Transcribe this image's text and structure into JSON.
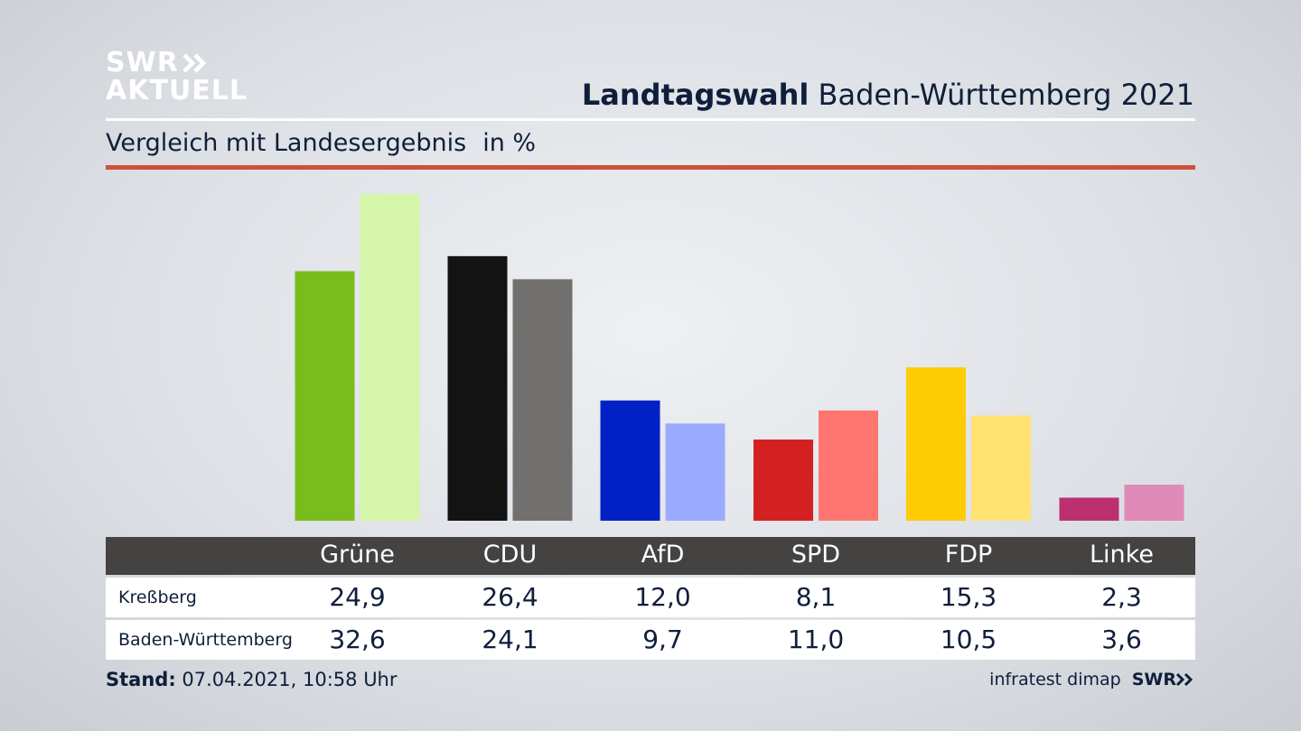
{
  "logo": {
    "line1": "SWR",
    "line2": "AKTUELL"
  },
  "header": {
    "title_bold": "Landtagswahl",
    "title_rest": "Baden-Württemberg 2021"
  },
  "subtitle": {
    "text": "Vergleich mit Landesergebnis",
    "unit": "in %"
  },
  "colors": {
    "accent_rule": "#cf4f3b",
    "table_header": "#454342"
  },
  "chart_data": {
    "type": "bar",
    "categories": [
      "Grüne",
      "CDU",
      "AfD",
      "SPD",
      "FDP",
      "Linke"
    ],
    "series": [
      {
        "name": "Kreßberg",
        "values": [
          24.9,
          26.4,
          12.0,
          8.1,
          15.3,
          2.3
        ],
        "colors": [
          "#79bd1d",
          "#131313",
          "#0021c6",
          "#d42020",
          "#ffcc06",
          "#bb3071"
        ]
      },
      {
        "name": "Baden-Württemberg",
        "values": [
          32.6,
          24.1,
          9.7,
          11.0,
          10.5,
          3.6
        ],
        "colors": [
          "#d4f5aa",
          "#72706e",
          "#9aabff",
          "#ff7570",
          "#ffe271",
          "#e08ab8"
        ]
      }
    ],
    "value_labels": [
      [
        "24,9",
        "26,4",
        "12,0",
        "8,1",
        "15,3",
        "2,3"
      ],
      [
        "32,6",
        "24,1",
        "9,7",
        "11,0",
        "10,5",
        "3,6"
      ]
    ],
    "ylim": [
      0,
      32.6
    ],
    "grid": false,
    "legend": "table-below"
  },
  "footer": {
    "stand_label": "Stand:",
    "stand_value": "07.04.2021, 10:58 Uhr",
    "credit": "infratest dimap",
    "credit_logo": "SWR"
  }
}
